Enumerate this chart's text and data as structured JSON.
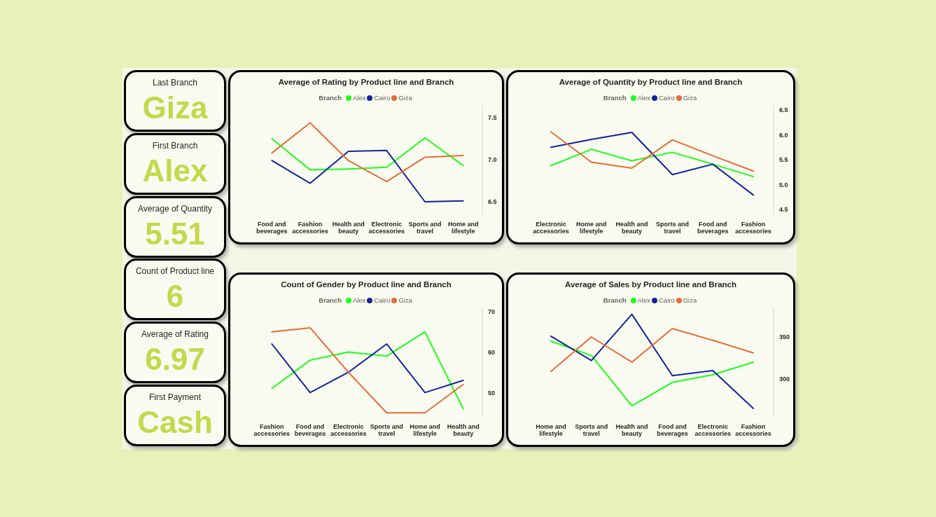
{
  "chart_data": [
    {
      "type": "other",
      "title": "Last Branch",
      "annotations": [
        "Giza"
      ]
    },
    {
      "type": "other",
      "title": "First Branch",
      "annotations": [
        "Alex"
      ]
    },
    {
      "type": "other",
      "title": "Average of Quantity",
      "annotations": [
        "5.51"
      ]
    },
    {
      "type": "other",
      "title": "Count of Product line",
      "annotations": [
        "6"
      ]
    },
    {
      "type": "other",
      "title": "Average of Rating",
      "annotations": [
        "6.97"
      ]
    },
    {
      "type": "other",
      "title": "First Payment",
      "annotations": [
        "Cash"
      ]
    },
    {
      "type": "line",
      "title": "Average of Rating by Product line and Branch",
      "legend_title": "Branch",
      "legend": "top",
      "categories": [
        "Food and beverages",
        "Fashion accessories",
        "Health and beauty",
        "Electronic accessories",
        "Sports and travel",
        "Home and lifestyle"
      ],
      "series": [
        {
          "name": "Alex",
          "color": "#1aff1a",
          "values": [
            7.25,
            6.88,
            6.89,
            6.91,
            7.26,
            6.93
          ]
        },
        {
          "name": "Cairo",
          "color": "#12239e",
          "values": [
            6.99,
            6.72,
            7.1,
            7.11,
            6.5,
            6.51
          ]
        },
        {
          "name": "Giza",
          "color": "#e66c37",
          "values": [
            7.08,
            7.44,
            6.99,
            6.74,
            7.03,
            7.05
          ]
        }
      ],
      "ylim": [
        6.35,
        7.65
      ],
      "yticks": [
        6.5,
        {
          "value": 7,
          "label": "7.0"
        },
        7.5
      ]
    },
    {
      "type": "line",
      "title": "Average of Quantity by Product line and Branch",
      "legend_title": "Branch",
      "legend": "top",
      "categories": [
        "Electronic accessories",
        "Home and lifestyle",
        "Health and beauty",
        "Sports and travel",
        "Food and beverages",
        "Fashion accessories"
      ],
      "series": [
        {
          "name": "Alex",
          "color": "#1aff1a",
          "values": [
            5.38,
            5.71,
            5.48,
            5.65,
            5.41,
            5.16
          ]
        },
        {
          "name": "Cairo",
          "color": "#12239e",
          "values": [
            5.75,
            5.91,
            6.05,
            5.2,
            5.41,
            4.79
          ]
        },
        {
          "name": "Giza",
          "color": "#e66c37",
          "values": [
            6.06,
            5.45,
            5.33,
            5.9,
            5.58,
            5.27
          ]
        }
      ],
      "ylim": [
        4.4,
        6.6
      ],
      "yticks": [
        4.5,
        {
          "value": 5,
          "label": "5.0"
        },
        5.5,
        {
          "value": 6,
          "label": "6.0"
        },
        6.5
      ]
    },
    {
      "type": "line",
      "title": "Count of Gender by Product line and Branch",
      "legend_title": "Branch",
      "legend": "top",
      "categories": [
        "Fashion accessories",
        "Food and beverages",
        "Electronic accessories",
        "Sports and travel",
        "Home and lifestyle",
        "Health and beauty"
      ],
      "series": [
        {
          "name": "Alex",
          "color": "#1aff1a",
          "values": [
            51,
            58,
            60,
            59,
            65,
            46
          ]
        },
        {
          "name": "Cairo",
          "color": "#12239e",
          "values": [
            62,
            50,
            55,
            62,
            50,
            53
          ]
        },
        {
          "name": "Giza",
          "color": "#e66c37",
          "values": [
            65,
            66,
            55,
            45,
            45,
            52
          ]
        }
      ],
      "ylim": [
        44,
        71
      ],
      "yticks": [
        50,
        60,
        70
      ]
    },
    {
      "type": "line",
      "title": "Average of Sales by Product line and Branch",
      "legend_title": "Branch",
      "legend": "top",
      "categories": [
        "Home and lifestyle",
        "Sports and travel",
        "Health and beauty",
        "Food and beverages",
        "Electronic accessories",
        "Fashion accessories"
      ],
      "series": [
        {
          "name": "Alex",
          "color": "#1aff1a",
          "values": [
            345,
            328,
            268,
            296,
            305,
            320
          ]
        },
        {
          "name": "Cairo",
          "color": "#12239e",
          "values": [
            351,
            322,
            377,
            304,
            310,
            265
          ]
        },
        {
          "name": "Giza",
          "color": "#e66c37",
          "values": [
            309,
            350,
            320,
            360,
            346,
            331
          ]
        }
      ],
      "ylim": [
        255,
        385
      ],
      "yticks": [
        300,
        350
      ]
    }
  ]
}
